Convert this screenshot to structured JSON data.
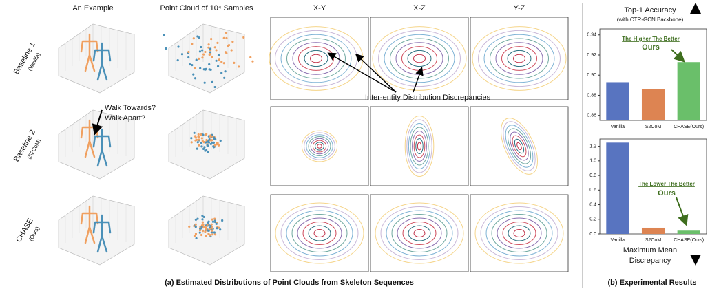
{
  "left": {
    "column_titles": [
      "An Example",
      "Point Cloud of 10⁴ Samples",
      "X-Y",
      "X-Z",
      "Y-Z"
    ],
    "row_labels": [
      {
        "name": "Baseline 1",
        "sub": "(Vanilla)"
      },
      {
        "name": "Baseline 2",
        "sub": "(S2CoM)"
      },
      {
        "name": "CHASE",
        "sub": "(Ours)"
      }
    ],
    "annotations": {
      "question_1": "Walk Towards?",
      "question_2": "Walk Apart?",
      "discrepancy": "Inter-entity Distribution Discrepancies"
    },
    "caption": "(a) Estimated Distributions of Point Clouds from Skeleton Sequences"
  },
  "right": {
    "caption": "(b) Experimental Results",
    "charts": [
      {
        "type": "bar",
        "title": "Top-1 Accuracy",
        "subtitle": "(with CTR-GCN Backbone)",
        "categories": [
          "Vanilla",
          "S2CoM",
          "CHASE(Ours)"
        ],
        "values": [
          0.893,
          0.886,
          0.913
        ],
        "colors": [
          "#5874c0",
          "#dd8452",
          "#6abf6a"
        ],
        "ylim": [
          0.855,
          0.946
        ],
        "yticks": [
          0.86,
          0.88,
          {
            "value": 0.9,
            "label": "0.90"
          },
          0.92,
          0.94
        ],
        "annotation": "The Higher The Better",
        "highlight": "Ours"
      },
      {
        "type": "bar",
        "title_lines": [
          "Maximum Mean",
          "Discrepancy"
        ],
        "categories": [
          "Vanilla",
          "S2CoM",
          "CHASE(Ours)"
        ],
        "values": [
          1.25,
          0.085,
          0.045
        ],
        "colors": [
          "#5874c0",
          "#dd8452",
          "#6abf6a"
        ],
        "ylim": [
          0,
          1.3
        ],
        "yticks": [
          {
            "value": 0,
            "label": "0.0"
          },
          0.2,
          0.4,
          0.6,
          0.8,
          {
            "value": 1,
            "label": "1.0"
          },
          1.2
        ],
        "annotation": "The Lower The Better",
        "highlight": "Ours"
      }
    ]
  }
}
